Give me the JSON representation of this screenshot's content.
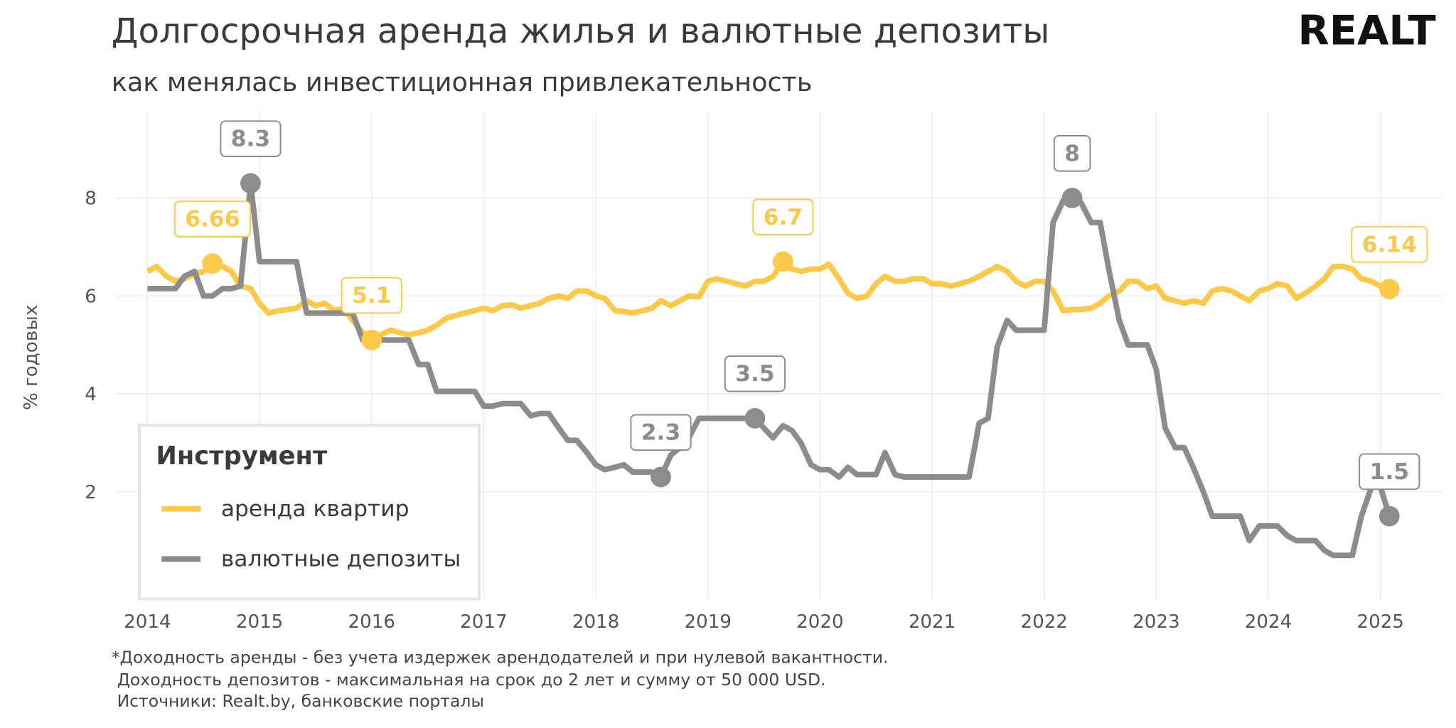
{
  "chart_data": {
    "type": "line",
    "title": "Долгосрочная аренда жилья и валютные депозиты",
    "subtitle": "как менялась инвестиционная привлекательность",
    "logo": "REALT",
    "y_label": "% годовых",
    "legend_title": "Инструмент",
    "legend": "lower left",
    "grid": true,
    "footnotes": [
      "*Доходность аренды - без учета издержек арендодателей и при нулевой вакантности.",
      "Доходность депозитов - максимальная на срок до 2 лет и сумму от 50  000 USD.",
      "Источники: Realt.by, банковские порталы"
    ],
    "xlim": [
      2013.72,
      2025.55
    ],
    "xticks": [
      2014,
      2015,
      2016,
      2017,
      2018,
      2019,
      2020,
      2021,
      2022,
      2023,
      2024,
      2025
    ],
    "ylim": [
      -0.2,
      9.75
    ],
    "yticks": [
      2,
      4,
      6,
      8
    ],
    "x": [
      2014,
      2014.08,
      2014.17,
      2014.25,
      2014.33,
      2014.42,
      2014.5,
      2014.58,
      2014.67,
      2014.75,
      2014.83,
      2014.92,
      2015,
      2015.08,
      2015.17,
      2015.25,
      2015.33,
      2015.42,
      2015.5,
      2015.58,
      2015.67,
      2015.75,
      2015.83,
      2015.92,
      2016,
      2016.08,
      2016.17,
      2016.25,
      2016.33,
      2016.42,
      2016.5,
      2016.58,
      2016.67,
      2016.75,
      2016.83,
      2016.92,
      2017,
      2017.08,
      2017.17,
      2017.25,
      2017.33,
      2017.42,
      2017.5,
      2017.58,
      2017.67,
      2017.75,
      2017.83,
      2017.92,
      2018,
      2018.08,
      2018.17,
      2018.25,
      2018.33,
      2018.42,
      2018.5,
      2018.58,
      2018.67,
      2018.75,
      2018.83,
      2018.92,
      2019,
      2019.08,
      2019.17,
      2019.25,
      2019.33,
      2019.42,
      2019.5,
      2019.58,
      2019.67,
      2019.75,
      2019.83,
      2019.92,
      2020,
      2020.08,
      2020.17,
      2020.25,
      2020.33,
      2020.42,
      2020.5,
      2020.58,
      2020.67,
      2020.75,
      2020.83,
      2020.92,
      2021,
      2021.08,
      2021.17,
      2021.25,
      2021.33,
      2021.42,
      2021.5,
      2021.58,
      2021.67,
      2021.75,
      2021.83,
      2021.92,
      2022,
      2022.08,
      2022.17,
      2022.25,
      2022.33,
      2022.42,
      2022.5,
      2022.58,
      2022.67,
      2022.75,
      2022.83,
      2022.92,
      2023,
      2023.08,
      2023.17,
      2023.25,
      2023.33,
      2023.42,
      2023.5,
      2023.58,
      2023.67,
      2023.75,
      2023.83,
      2023.92,
      2024,
      2024.08,
      2024.17,
      2024.25,
      2024.33,
      2024.42,
      2024.5,
      2024.58,
      2024.67,
      2024.75,
      2024.83,
      2024.92,
      2025,
      2025.08
    ],
    "series": [
      {
        "name": "аренда квартир",
        "color": "#fcc94a",
        "labeled": [
          7,
          24,
          68,
          133
        ],
        "values": [
          6.5,
          6.6,
          6.4,
          6.3,
          6.35,
          6.45,
          6.5,
          6.66,
          6.6,
          6.5,
          6.2,
          6.15,
          5.85,
          5.65,
          5.7,
          5.72,
          5.75,
          5.9,
          5.8,
          5.85,
          5.7,
          5.75,
          5.5,
          5.25,
          5.1,
          5.2,
          5.3,
          5.25,
          5.2,
          5.25,
          5.3,
          5.4,
          5.55,
          5.6,
          5.65,
          5.7,
          5.75,
          5.7,
          5.8,
          5.82,
          5.75,
          5.8,
          5.85,
          5.95,
          6.0,
          5.95,
          6.1,
          6.1,
          6.0,
          5.95,
          5.7,
          5.68,
          5.65,
          5.7,
          5.75,
          5.9,
          5.8,
          5.9,
          6.0,
          5.98,
          6.3,
          6.35,
          6.3,
          6.25,
          6.2,
          6.3,
          6.3,
          6.4,
          6.7,
          6.55,
          6.5,
          6.55,
          6.55,
          6.65,
          6.35,
          6.05,
          5.95,
          6.0,
          6.25,
          6.4,
          6.3,
          6.3,
          6.35,
          6.35,
          6.25,
          6.25,
          6.2,
          6.25,
          6.3,
          6.4,
          6.5,
          6.6,
          6.5,
          6.3,
          6.2,
          6.3,
          6.3,
          6.1,
          5.7,
          5.72,
          5.72,
          5.75,
          5.85,
          6.0,
          6.1,
          6.3,
          6.3,
          6.15,
          6.2,
          5.95,
          5.9,
          5.85,
          5.9,
          5.85,
          6.1,
          6.15,
          6.1,
          6.0,
          5.9,
          6.1,
          6.15,
          6.25,
          6.2,
          5.95,
          6.05,
          6.2,
          6.35,
          6.6,
          6.6,
          6.55,
          6.35,
          6.3,
          6.2,
          6.14
        ]
      },
      {
        "name": "валютные депозиты",
        "color": "#8c8c8c",
        "labeled": [
          11,
          55,
          65,
          99,
          133
        ],
        "values": [
          6.15,
          6.15,
          6.15,
          6.15,
          6.4,
          6.5,
          6.0,
          6.0,
          6.15,
          6.15,
          6.2,
          8.3,
          6.7,
          6.7,
          6.7,
          6.7,
          6.7,
          5.65,
          5.65,
          5.65,
          5.65,
          5.65,
          5.65,
          5.1,
          5.1,
          5.1,
          5.1,
          5.1,
          5.1,
          4.6,
          4.6,
          4.05,
          4.05,
          4.05,
          4.05,
          4.05,
          3.75,
          3.75,
          3.8,
          3.8,
          3.8,
          3.55,
          3.6,
          3.6,
          3.3,
          3.05,
          3.05,
          2.8,
          2.55,
          2.45,
          2.5,
          2.55,
          2.4,
          2.4,
          2.4,
          2.3,
          2.75,
          2.9,
          3.1,
          3.5,
          3.5,
          3.5,
          3.5,
          3.5,
          3.5,
          3.5,
          3.3,
          3.1,
          3.35,
          3.25,
          3.0,
          2.55,
          2.45,
          2.45,
          2.3,
          2.5,
          2.35,
          2.35,
          2.35,
          2.8,
          2.35,
          2.3,
          2.3,
          2.3,
          2.3,
          2.3,
          2.3,
          2.3,
          2.3,
          3.4,
          3.5,
          4.95,
          5.5,
          5.3,
          5.3,
          5.3,
          5.3,
          7.5,
          7.95,
          8.0,
          7.9,
          7.5,
          7.5,
          6.5,
          5.5,
          5.0,
          5.0,
          5.0,
          4.5,
          3.3,
          2.9,
          2.9,
          2.5,
          2.0,
          1.5,
          1.5,
          1.5,
          1.5,
          1.0,
          1.3,
          1.3,
          1.3,
          1.1,
          1.0,
          1.0,
          1.0,
          0.8,
          0.7,
          0.7,
          0.7,
          1.5,
          2.1,
          2.1,
          1.5
        ]
      }
    ]
  }
}
